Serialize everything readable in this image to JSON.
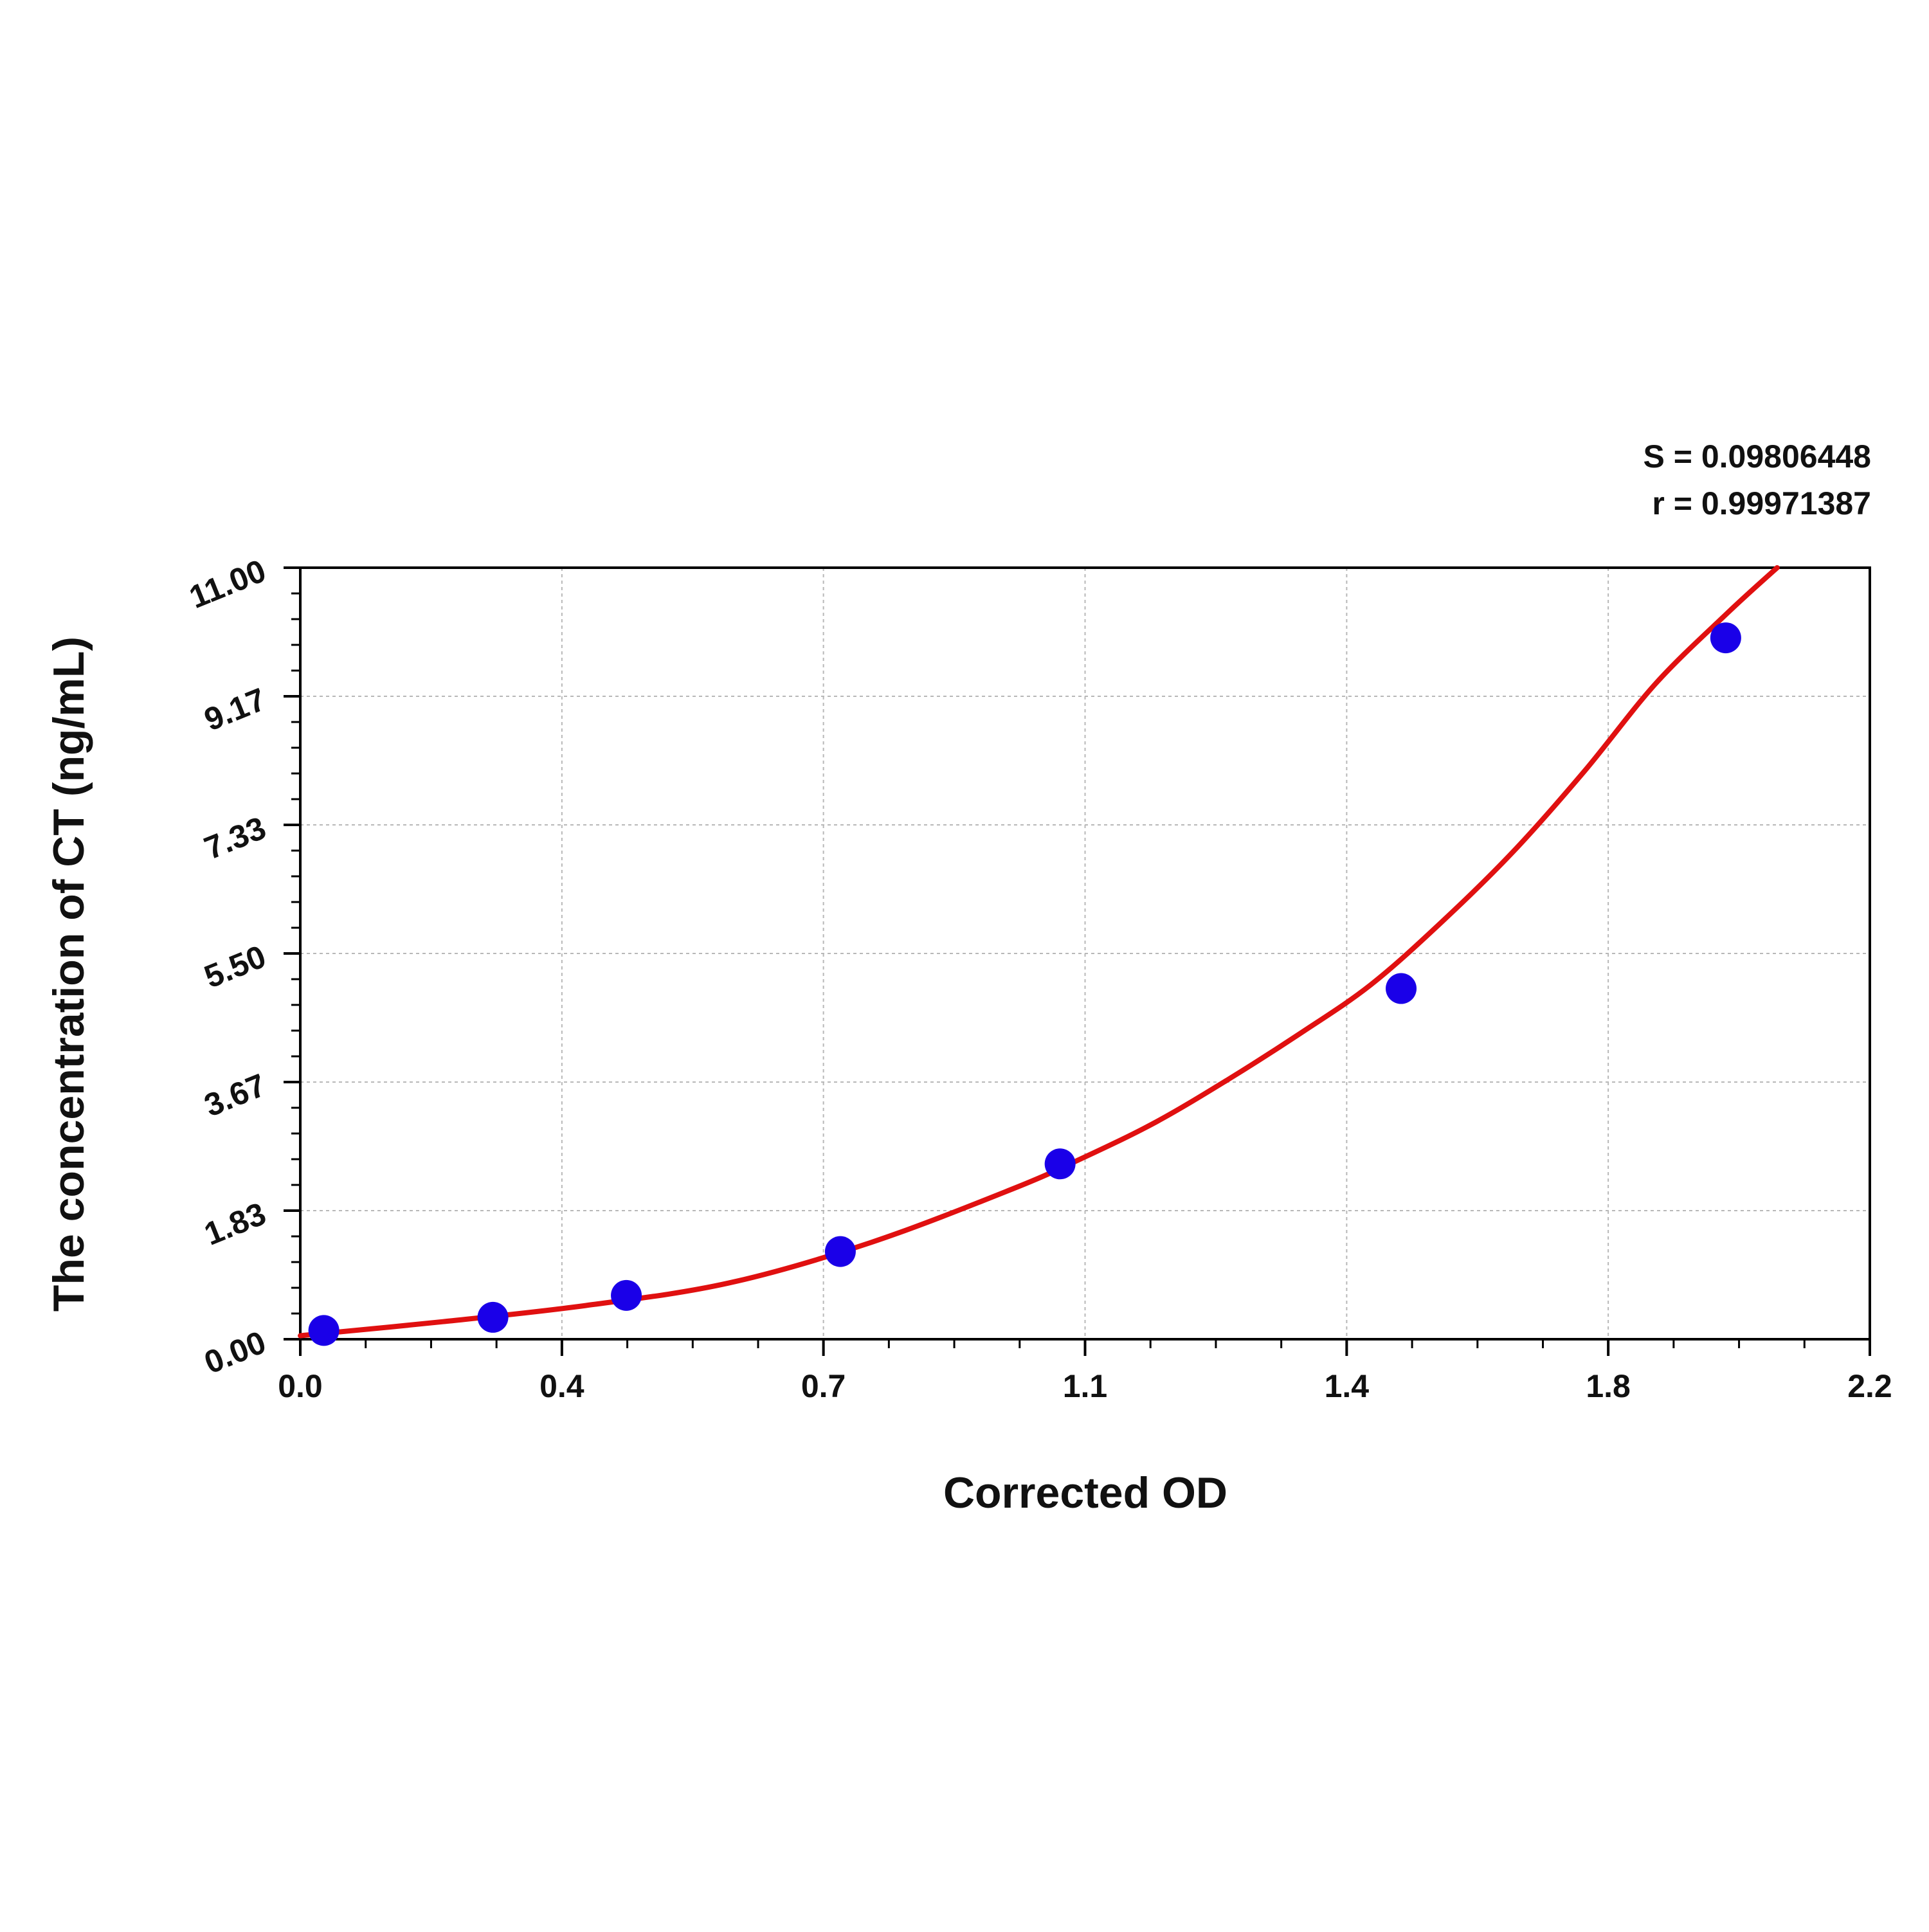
{
  "chart_data": {
    "type": "scatter",
    "title": "",
    "xlabel": "Corrected OD",
    "ylabel": "The concentration of CT (ng/mL)",
    "xlim": [
      0.0,
      2.2
    ],
    "ylim": [
      0.0,
      11.0
    ],
    "x_ticks": [
      "0.0",
      "0.4",
      "0.7",
      "1.1",
      "1.4",
      "1.8",
      "2.2"
    ],
    "x_tick_values": [
      0.0,
      0.3667,
      0.7333,
      1.1,
      1.4667,
      1.8333,
      2.2
    ],
    "y_ticks": [
      "0.00",
      "1.83",
      "3.67",
      "5.50",
      "7.33",
      "9.17",
      "11.00"
    ],
    "y_tick_values": [
      0.0,
      1.8333,
      3.6667,
      5.5,
      7.3333,
      9.1667,
      11.0
    ],
    "grid": true,
    "legend": "none",
    "stats": [
      "S = 0.09806448",
      "r = 0.99971387"
    ],
    "series": [
      {
        "kind": "points",
        "color": "#1a00e8",
        "x": [
          0.033,
          0.27,
          0.457,
          0.757,
          1.065,
          1.543,
          1.998
        ],
        "y": [
          0.125,
          0.3125,
          0.625,
          1.25,
          2.5,
          5.0,
          10.0
        ]
      },
      {
        "kind": "fit-curve",
        "color": "#e01010",
        "x": [
          0.0,
          0.2,
          0.4,
          0.6,
          0.8,
          1.0,
          1.1,
          1.2,
          1.3,
          1.4,
          1.5,
          1.6,
          1.7,
          1.8,
          1.9,
          2.0,
          2.07
        ],
        "y": [
          0.05,
          0.25,
          0.48,
          0.8,
          1.38,
          2.15,
          2.6,
          3.1,
          3.7,
          4.35,
          5.05,
          5.95,
          6.95,
          8.1,
          9.35,
          10.35,
          11.0
        ]
      }
    ]
  }
}
